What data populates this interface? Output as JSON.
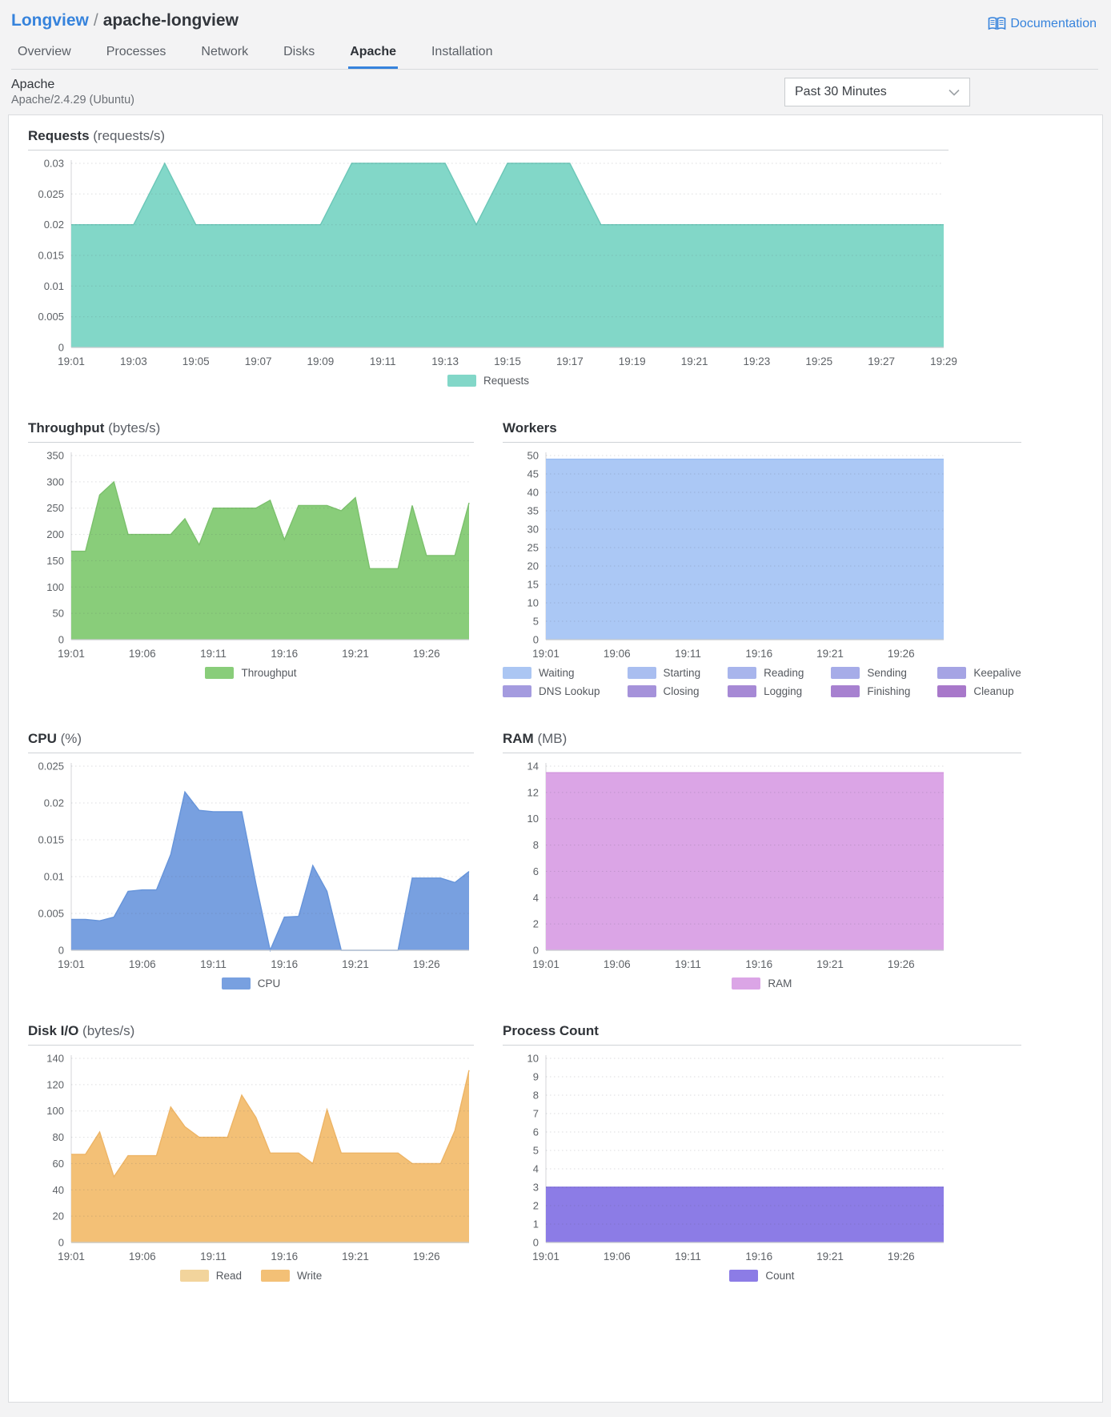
{
  "header": {
    "breadcrumb": {
      "parent": "Longview",
      "separator": "/",
      "current": "apache-longview"
    },
    "documentation_label": "Documentation",
    "tabs": [
      {
        "label": "Overview",
        "active": false
      },
      {
        "label": "Processes",
        "active": false
      },
      {
        "label": "Network",
        "active": false
      },
      {
        "label": "Disks",
        "active": false
      },
      {
        "label": "Apache",
        "active": true
      },
      {
        "label": "Installation",
        "active": false
      }
    ]
  },
  "subheader": {
    "title": "Apache",
    "subtitle": "Apache/2.4.29 (Ubuntu)",
    "time_range_select": {
      "value": "Past 30 Minutes"
    }
  },
  "colors": {
    "accent_blue": "#3683dc",
    "page_background": "#f3f3f4",
    "card_background": "#ffffff",
    "requests_teal": "#82d7c8",
    "throughput_green": "#89cd7a",
    "workers_blue": "#abc8f5",
    "cpu_blue": "#78a0e0",
    "ram_orchid": "#dba5e6",
    "disk_read_cream": "#f2d49c",
    "disk_write_orange": "#f3c076",
    "process_purple": "#8c7ce6"
  },
  "chart_data": [
    {
      "id": "requests",
      "type": "area",
      "title": "Requests",
      "unit": "(requests/s)",
      "x": [
        "19:01",
        "19:02",
        "19:03",
        "19:04",
        "19:05",
        "19:06",
        "19:07",
        "19:08",
        "19:09",
        "19:10",
        "19:11",
        "19:12",
        "19:13",
        "19:14",
        "19:15",
        "19:16",
        "19:17",
        "19:18",
        "19:19",
        "19:20",
        "19:21",
        "19:22",
        "19:23",
        "19:24",
        "19:25",
        "19:26",
        "19:27",
        "19:28",
        "19:29"
      ],
      "x_ticks": [
        "19:01",
        "19:03",
        "19:05",
        "19:07",
        "19:09",
        "19:11",
        "19:13",
        "19:15",
        "19:17",
        "19:19",
        "19:21",
        "19:23",
        "19:25",
        "19:27",
        "19:29"
      ],
      "ylim": [
        0,
        0.03
      ],
      "y_ticks": [
        0,
        0.005,
        0.01,
        0.015,
        0.02,
        0.025,
        0.03
      ],
      "grid": true,
      "legend_position": "bottom",
      "series": [
        {
          "name": "Requests",
          "color": "#82d7c8",
          "stroke": "#6cc7b8",
          "values": [
            0.02,
            0.02,
            0.02,
            0.03,
            0.02,
            0.02,
            0.02,
            0.02,
            0.02,
            0.03,
            0.03,
            0.03,
            0.03,
            0.02,
            0.03,
            0.03,
            0.03,
            0.02,
            0.02,
            0.02,
            0.02,
            0.02,
            0.02,
            0.02,
            0.02,
            0.02,
            0.02,
            0.02,
            0.02
          ]
        }
      ],
      "legend": [
        {
          "label": "Requests",
          "color": "#82d7c8"
        }
      ]
    },
    {
      "id": "throughput",
      "type": "area",
      "title": "Throughput",
      "unit": "(bytes/s)",
      "x": [
        "19:01",
        "19:02",
        "19:03",
        "19:04",
        "19:05",
        "19:06",
        "19:07",
        "19:08",
        "19:09",
        "19:10",
        "19:11",
        "19:12",
        "19:13",
        "19:14",
        "19:15",
        "19:16",
        "19:17",
        "19:18",
        "19:19",
        "19:20",
        "19:21",
        "19:22",
        "19:23",
        "19:24",
        "19:25",
        "19:26",
        "19:27",
        "19:28",
        "19:29"
      ],
      "x_ticks": [
        "19:01",
        "19:06",
        "19:11",
        "19:16",
        "19:21",
        "19:26"
      ],
      "ylim": [
        0,
        350
      ],
      "y_ticks": [
        0,
        50,
        100,
        150,
        200,
        250,
        300,
        350
      ],
      "grid": true,
      "legend_position": "bottom",
      "series": [
        {
          "name": "Throughput",
          "color": "#89cd7a",
          "stroke": "#7bc06c",
          "values": [
            168,
            168,
            275,
            300,
            200,
            200,
            200,
            200,
            230,
            180,
            250,
            250,
            250,
            250,
            265,
            190,
            255,
            255,
            255,
            245,
            270,
            135,
            135,
            135,
            255,
            160,
            160,
            160,
            260
          ]
        }
      ],
      "legend": [
        {
          "label": "Throughput",
          "color": "#89cd7a"
        }
      ]
    },
    {
      "id": "workers",
      "type": "area",
      "title": "Workers",
      "unit": "",
      "x": [
        "19:01",
        "19:02",
        "19:03",
        "19:04",
        "19:05",
        "19:06",
        "19:07",
        "19:08",
        "19:09",
        "19:10",
        "19:11",
        "19:12",
        "19:13",
        "19:14",
        "19:15",
        "19:16",
        "19:17",
        "19:18",
        "19:19",
        "19:20",
        "19:21",
        "19:22",
        "19:23",
        "19:24",
        "19:25",
        "19:26",
        "19:27",
        "19:28",
        "19:29"
      ],
      "x_ticks": [
        "19:01",
        "19:06",
        "19:11",
        "19:16",
        "19:21",
        "19:26"
      ],
      "ylim": [
        0,
        50
      ],
      "y_ticks": [
        0,
        5,
        10,
        15,
        20,
        25,
        30,
        35,
        40,
        45,
        50
      ],
      "grid": true,
      "legend_position": "bottom",
      "legend_columns": 5,
      "series": [
        {
          "name": "Waiting",
          "color": "#abc8f5",
          "stroke": "#9bbdf2",
          "values": [
            49,
            49,
            49,
            49,
            49,
            49,
            49,
            49,
            49,
            49,
            49,
            49,
            49,
            49,
            49,
            49,
            49,
            49,
            49,
            49,
            49,
            49,
            49,
            49,
            49,
            49,
            49,
            49,
            49
          ]
        }
      ],
      "legend": [
        {
          "label": "Waiting",
          "color": "#abc6f3"
        },
        {
          "label": "Starting",
          "color": "#a9bef0"
        },
        {
          "label": "Reading",
          "color": "#a8b5ec"
        },
        {
          "label": "Sending",
          "color": "#a6ace8"
        },
        {
          "label": "Keepalive",
          "color": "#a5a4e4"
        },
        {
          "label": "DNS Lookup",
          "color": "#a49bdf"
        },
        {
          "label": "Closing",
          "color": "#a592da"
        },
        {
          "label": "Logging",
          "color": "#a689d5"
        },
        {
          "label": "Finishing",
          "color": "#a781d0"
        },
        {
          "label": "Cleanup",
          "color": "#a878ca"
        }
      ]
    },
    {
      "id": "cpu",
      "type": "area",
      "title": "CPU",
      "unit": "(%)",
      "x": [
        "19:01",
        "19:02",
        "19:03",
        "19:04",
        "19:05",
        "19:06",
        "19:07",
        "19:08",
        "19:09",
        "19:10",
        "19:11",
        "19:12",
        "19:13",
        "19:14",
        "19:15",
        "19:16",
        "19:17",
        "19:18",
        "19:19",
        "19:20",
        "19:21",
        "19:22",
        "19:23",
        "19:24",
        "19:25",
        "19:26",
        "19:27",
        "19:28",
        "19:29"
      ],
      "x_ticks": [
        "19:01",
        "19:06",
        "19:11",
        "19:16",
        "19:21",
        "19:26"
      ],
      "ylim": [
        0,
        0.025
      ],
      "y_ticks": [
        0,
        0.005,
        0.01,
        0.015,
        0.02,
        0.025
      ],
      "grid": true,
      "legend_position": "bottom",
      "series": [
        {
          "name": "CPU",
          "color": "#78a0e0",
          "stroke": "#6694da",
          "values": [
            0.0042,
            0.0042,
            0.004,
            0.0045,
            0.008,
            0.0082,
            0.0082,
            0.013,
            0.0215,
            0.019,
            0.0188,
            0.0188,
            0.0188,
            0.009,
            0,
            0.0045,
            0.0046,
            0.0115,
            0.008,
            0,
            0,
            0,
            0,
            0,
            0.0098,
            0.0098,
            0.0098,
            0.0092,
            0.0107
          ]
        }
      ],
      "legend": [
        {
          "label": "CPU",
          "color": "#78a0e0"
        }
      ]
    },
    {
      "id": "ram",
      "type": "area",
      "title": "RAM",
      "unit": "(MB)",
      "x": [
        "19:01",
        "19:02",
        "19:03",
        "19:04",
        "19:05",
        "19:06",
        "19:07",
        "19:08",
        "19:09",
        "19:10",
        "19:11",
        "19:12",
        "19:13",
        "19:14",
        "19:15",
        "19:16",
        "19:17",
        "19:18",
        "19:19",
        "19:20",
        "19:21",
        "19:22",
        "19:23",
        "19:24",
        "19:25",
        "19:26",
        "19:27",
        "19:28",
        "19:29"
      ],
      "x_ticks": [
        "19:01",
        "19:06",
        "19:11",
        "19:16",
        "19:21",
        "19:26"
      ],
      "ylim": [
        0,
        14
      ],
      "y_ticks": [
        0,
        2,
        4,
        6,
        8,
        10,
        12,
        14
      ],
      "grid": true,
      "legend_position": "bottom",
      "series": [
        {
          "name": "RAM",
          "color": "#dba5e6",
          "stroke": "#d096dd",
          "values": [
            13.5,
            13.5,
            13.5,
            13.5,
            13.5,
            13.5,
            13.5,
            13.5,
            13.5,
            13.5,
            13.5,
            13.5,
            13.5,
            13.5,
            13.5,
            13.5,
            13.5,
            13.5,
            13.5,
            13.5,
            13.5,
            13.5,
            13.5,
            13.5,
            13.5,
            13.5,
            13.5,
            13.5,
            13.5
          ]
        }
      ],
      "legend": [
        {
          "label": "RAM",
          "color": "#dba5e6"
        }
      ]
    },
    {
      "id": "disk",
      "type": "area",
      "title": "Disk I/O",
      "unit": "(bytes/s)",
      "x": [
        "19:01",
        "19:02",
        "19:03",
        "19:04",
        "19:05",
        "19:06",
        "19:07",
        "19:08",
        "19:09",
        "19:10",
        "19:11",
        "19:12",
        "19:13",
        "19:14",
        "19:15",
        "19:16",
        "19:17",
        "19:18",
        "19:19",
        "19:20",
        "19:21",
        "19:22",
        "19:23",
        "19:24",
        "19:25",
        "19:26",
        "19:27",
        "19:28",
        "19:29"
      ],
      "x_ticks": [
        "19:01",
        "19:06",
        "19:11",
        "19:16",
        "19:21",
        "19:26"
      ],
      "ylim": [
        0,
        140
      ],
      "y_ticks": [
        0,
        20,
        40,
        60,
        80,
        100,
        120,
        140
      ],
      "grid": true,
      "legend_position": "bottom",
      "series": [
        {
          "name": "Write",
          "color": "#f3c076",
          "stroke": "#edb465",
          "values": [
            67,
            67,
            84,
            50,
            66,
            66,
            66,
            103,
            88,
            80,
            80,
            80,
            112,
            95,
            68,
            68,
            68,
            60,
            101,
            68,
            68,
            68,
            68,
            68,
            60,
            60,
            60,
            85,
            131
          ]
        },
        {
          "name": "Read",
          "color": "#f2d49c",
          "stroke": "#ecc98a",
          "values": [
            0,
            0,
            0,
            0,
            0,
            0,
            0,
            0,
            0,
            0,
            0,
            0,
            0,
            0,
            0,
            0,
            0,
            0,
            0,
            0,
            0,
            0,
            0,
            0,
            0,
            0,
            0,
            0,
            0
          ]
        }
      ],
      "legend": [
        {
          "label": "Read",
          "color": "#f2d49c"
        },
        {
          "label": "Write",
          "color": "#f3c076"
        }
      ]
    },
    {
      "id": "process",
      "type": "area",
      "title": "Process Count",
      "unit": "",
      "x": [
        "19:01",
        "19:02",
        "19:03",
        "19:04",
        "19:05",
        "19:06",
        "19:07",
        "19:08",
        "19:09",
        "19:10",
        "19:11",
        "19:12",
        "19:13",
        "19:14",
        "19:15",
        "19:16",
        "19:17",
        "19:18",
        "19:19",
        "19:20",
        "19:21",
        "19:22",
        "19:23",
        "19:24",
        "19:25",
        "19:26",
        "19:27",
        "19:28",
        "19:29"
      ],
      "x_ticks": [
        "19:01",
        "19:06",
        "19:11",
        "19:16",
        "19:21",
        "19:26"
      ],
      "ylim": [
        0,
        10
      ],
      "y_ticks": [
        0,
        1,
        2,
        3,
        4,
        5,
        6,
        7,
        8,
        9,
        10
      ],
      "grid": true,
      "legend_position": "bottom",
      "series": [
        {
          "name": "Count",
          "color": "#8c7ce6",
          "stroke": "#7f6fdd",
          "values": [
            3,
            3,
            3,
            3,
            3,
            3,
            3,
            3,
            3,
            3,
            3,
            3,
            3,
            3,
            3,
            3,
            3,
            3,
            3,
            3,
            3,
            3,
            3,
            3,
            3,
            3,
            3,
            3,
            3
          ]
        }
      ],
      "legend": [
        {
          "label": "Count",
          "color": "#8c7ce6"
        }
      ]
    }
  ]
}
